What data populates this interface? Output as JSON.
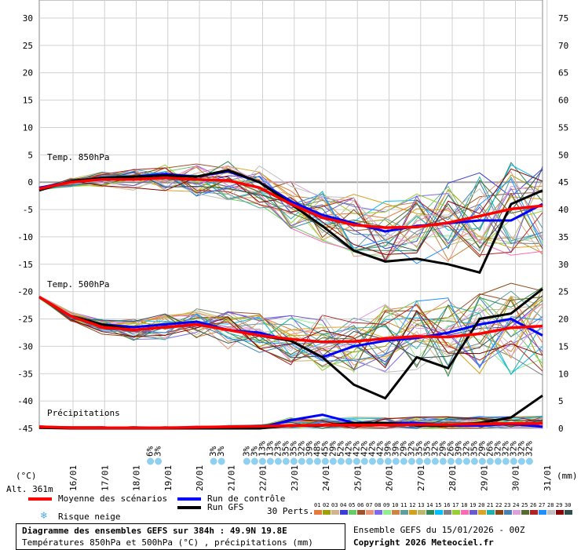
{
  "chart_data": {
    "type": "line",
    "sections": {
      "t850_label": "Temp. 850hPa",
      "t500_label": "Temp. 500hPa",
      "precip_label": "Précipitations"
    },
    "left_axis": {
      "unit_label": "(°C)",
      "ticks": [
        30,
        25,
        20,
        15,
        10,
        5,
        0,
        -5,
        -10,
        -15,
        -20,
        -25,
        -30,
        -35,
        -40,
        -45
      ],
      "range": [
        -45,
        30
      ]
    },
    "right_axis": {
      "unit_label": "(mm)",
      "ticks": [
        75,
        70,
        65,
        60,
        55,
        50,
        45,
        40,
        35,
        30,
        25,
        20,
        15,
        10,
        5,
        0
      ],
      "range": [
        0,
        75
      ]
    },
    "dates": [
      "16/01",
      "17/01",
      "18/01",
      "19/01",
      "20/01",
      "21/01",
      "22/01",
      "23/01",
      "24/01",
      "25/01",
      "26/01",
      "27/01",
      "28/01",
      "29/01",
      "30/01",
      "31/01"
    ],
    "altitude_label": "Alt. 361m",
    "snow_risk_pct": [
      {
        "date": "18/01",
        "values": [
          "6%",
          "3%"
        ]
      },
      {
        "date": "20/01",
        "values": [
          "3%",
          "3%"
        ]
      },
      {
        "date": "21/01",
        "values": [
          "3%",
          "3%",
          "13%",
          "13%",
          "23%",
          "35%",
          "35%",
          "32%",
          "39%",
          "48%",
          "45%",
          "29%",
          "52%",
          "42%",
          "42%",
          "42%",
          "42%",
          "42%",
          "39%",
          "39%",
          "29%",
          "32%",
          "35%",
          "35%",
          "32%",
          "29%",
          "26%",
          "39%",
          "32%",
          "35%",
          "29%",
          "26%",
          "32%",
          "32%",
          "32%",
          "32%",
          "32%"
        ]
      }
    ],
    "series": [
      {
        "name": "Moyenne des scénarios",
        "color": "#ff0000",
        "t850": [
          -1.2,
          0,
          0.5,
          0.5,
          0.8,
          0.5,
          0.3,
          -1,
          -4,
          -6.5,
          -7.8,
          -8.3,
          -8.2,
          -7.4,
          -6.2,
          -4.9,
          -4.3
        ],
        "t500": [
          -21,
          -24.5,
          -26.5,
          -27,
          -26.5,
          -26,
          -27,
          -28,
          -28.7,
          -29.2,
          -29.1,
          -28.6,
          -28.2,
          -28.3,
          -27.7,
          -26.6,
          -26.3
        ],
        "precip": [
          0.3,
          0.1,
          0.1,
          0.1,
          0.1,
          0.2,
          0.3,
          0.4,
          0.5,
          0.6,
          0.6,
          0.6,
          0.7,
          0.7,
          0.8,
          0.9,
          0.9
        ]
      },
      {
        "name": "Run de contrôle",
        "color": "#0000ff",
        "t850": [
          -1,
          0,
          0.8,
          1,
          1.5,
          1,
          2,
          0,
          -3.5,
          -6,
          -7.5,
          -9,
          -8,
          -7.5,
          -7,
          -7,
          -4
        ],
        "t500": [
          -21,
          -24.5,
          -26,
          -26.5,
          -26,
          -25.5,
          -27,
          -27.5,
          -29,
          -32,
          -30,
          -29,
          -28.5,
          -27.5,
          -26,
          -25,
          -28
        ],
        "precip": [
          0.2,
          0.1,
          0,
          0,
          0,
          0,
          0,
          0,
          1.5,
          2.5,
          1,
          1,
          1,
          0.5,
          0.5,
          0.8,
          0.3
        ]
      },
      {
        "name": "Run GFS",
        "color": "#000000",
        "t850": [
          -1.5,
          0.2,
          0.8,
          1,
          1.2,
          1,
          2.2,
          0,
          -4,
          -8,
          -12.5,
          -14.5,
          -14,
          -15,
          -16.5,
          -4,
          -1.5
        ],
        "t500": [
          -21,
          -24.5,
          -26,
          -27,
          -26.5,
          -26,
          -27,
          -28,
          -29,
          -32,
          -37,
          -39.5,
          -32,
          -34,
          -25,
          -24,
          -19.5
        ],
        "precip": [
          0.1,
          0,
          0,
          0,
          0,
          0,
          0,
          0,
          0.5,
          0.5,
          1,
          1,
          0.5,
          0.5,
          1,
          2,
          6
        ]
      }
    ],
    "perturbations": {
      "label": "30 Perts.",
      "numbers": [
        "01",
        "02",
        "03",
        "04",
        "05",
        "06",
        "07",
        "08",
        "09",
        "10",
        "11",
        "12",
        "13",
        "14",
        "15",
        "16",
        "17",
        "18",
        "19",
        "20",
        "21",
        "22",
        "23",
        "24",
        "25",
        "26",
        "27",
        "28",
        "29",
        "30"
      ],
      "colors": [
        "#e8793c",
        "#a0a000",
        "#d2b48c",
        "#3c3cdc",
        "#66cc66",
        "#a0522d",
        "#e9967a",
        "#7b68ee",
        "#90ee90",
        "#cd853f",
        "#5f9ea0",
        "#d4a017",
        "#bdb76b",
        "#2e8b57",
        "#00bfff",
        "#808080",
        "#9acd32",
        "#ff69b4",
        "#6a5acd",
        "#daa520",
        "#20b2aa",
        "#8b4513",
        "#4682b4",
        "#dda0dd",
        "#556b2f",
        "#b22222",
        "#1e90ff",
        "#c0c0c0",
        "#8b0000",
        "#2f4f4f"
      ]
    },
    "legend": {
      "mean": "Moyenne des scénarios",
      "control": "Run de contrôle",
      "gfs": "Run GFS",
      "snow": "Risque neige"
    },
    "footer": {
      "title": "Diagramme des ensembles GEFS sur 384h : 49.9N 19.8E",
      "subtitle": "Températures 850hPa et 500hPa (°C) , précipitations (mm)",
      "run": "Ensemble GEFS du 15/01/2026 - 00Z",
      "copyright": "Copyright 2026 Meteociel.fr"
    }
  }
}
